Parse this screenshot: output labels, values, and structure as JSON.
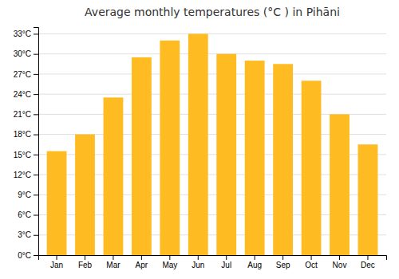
{
  "chart_data": {
    "type": "bar",
    "title": "Average monthly temperatures (°C ) in Pihāni",
    "categories": [
      "Jan",
      "Feb",
      "Mar",
      "Apr",
      "May",
      "Jun",
      "Jul",
      "Aug",
      "Sep",
      "Oct",
      "Nov",
      "Dec"
    ],
    "values": [
      15.5,
      18.0,
      23.5,
      29.5,
      32.0,
      33.0,
      30.0,
      29.0,
      28.5,
      26.0,
      21.0,
      16.5
    ],
    "color": "#FFBB22",
    "ylim": [
      0,
      34
    ],
    "yticks": [
      {
        "value": 0,
        "label": "0°C"
      },
      {
        "value": 3,
        "label": "3°C"
      },
      {
        "value": 6,
        "label": "6°C"
      },
      {
        "value": 9,
        "label": "9°C"
      },
      {
        "value": 12,
        "label": "12°C"
      },
      {
        "value": 15,
        "label": "15°C"
      },
      {
        "value": 18,
        "label": "18°C"
      },
      {
        "value": 21,
        "label": "21°C"
      },
      {
        "value": 24,
        "label": "24°C"
      },
      {
        "value": 27,
        "label": "27°C"
      },
      {
        "value": 30,
        "label": "30°C"
      },
      {
        "value": 33,
        "label": "33°C"
      }
    ],
    "grid": true
  }
}
